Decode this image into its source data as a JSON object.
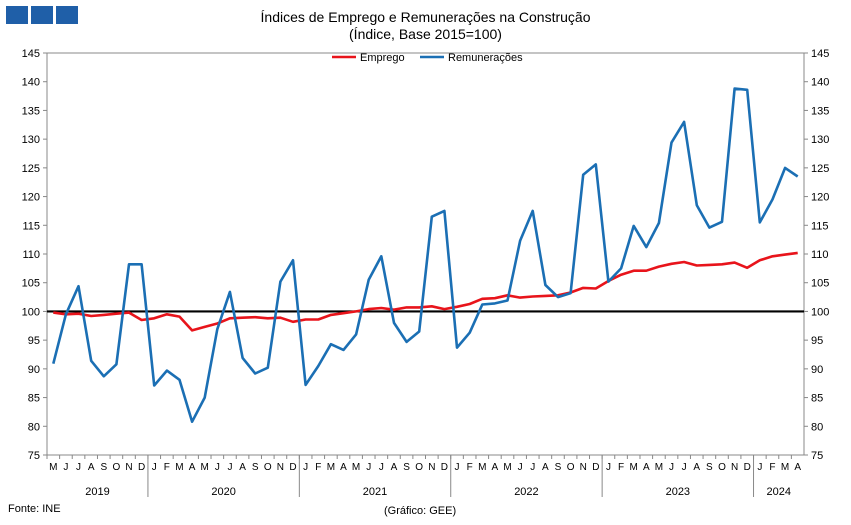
{
  "source_label": "Fonte: INE",
  "credit_label": "(Gráfico: GEE)",
  "chart_data": {
    "type": "line",
    "title": "Índices de Emprego e Remunerações na Construção",
    "subtitle": "(Índice, Base 2015=100)",
    "ylim": [
      75,
      145
    ],
    "yticks": [
      75,
      80,
      85,
      90,
      95,
      100,
      105,
      110,
      115,
      120,
      125,
      130,
      135,
      140,
      145
    ],
    "reference_line": 100,
    "grid": false,
    "legend_position": "top-center",
    "month_labels": [
      "M",
      "J",
      "J",
      "A",
      "S",
      "O",
      "N",
      "D",
      "J",
      "F",
      "M",
      "A",
      "M",
      "J",
      "J",
      "A",
      "S",
      "O",
      "N",
      "D",
      "J",
      "F",
      "M",
      "A",
      "M",
      "J",
      "J",
      "A",
      "S",
      "O",
      "N",
      "D",
      "J",
      "F",
      "M",
      "A",
      "M",
      "J",
      "J",
      "A",
      "S",
      "O",
      "N",
      "D",
      "J",
      "F",
      "M",
      "A",
      "M",
      "J",
      "J",
      "A",
      "S",
      "O",
      "N",
      "D",
      "J",
      "F",
      "M",
      "A"
    ],
    "years": [
      {
        "label": "2019",
        "months": 8
      },
      {
        "label": "2020",
        "months": 12
      },
      {
        "label": "2021",
        "months": 12
      },
      {
        "label": "2022",
        "months": 12
      },
      {
        "label": "2023",
        "months": 12
      },
      {
        "label": "2024",
        "months": 4
      }
    ],
    "series": [
      {
        "name": "Emprego",
        "color": "#e8141b",
        "values": [
          99.8,
          99.5,
          99.6,
          99.2,
          99.4,
          99.6,
          99.8,
          98.5,
          98.8,
          99.5,
          99.1,
          96.7,
          97.3,
          97.9,
          98.8,
          98.9,
          99.0,
          98.8,
          98.9,
          98.2,
          98.6,
          98.6,
          99.4,
          99.7,
          100.0,
          100.4,
          100.6,
          100.3,
          100.7,
          100.7,
          100.9,
          100.4,
          100.8,
          101.3,
          102.2,
          102.3,
          102.8,
          102.4,
          102.6,
          102.7,
          102.8,
          103.3,
          104.1,
          104.0,
          105.3,
          106.4,
          107.1,
          107.1,
          107.8,
          108.3,
          108.6,
          108.0,
          108.1,
          108.2,
          108.5,
          107.6,
          108.9,
          109.6,
          109.9,
          110.2
        ]
      },
      {
        "name": "Remunerações",
        "color": "#1b6fb4",
        "values": [
          90.9,
          99.5,
          104.4,
          91.4,
          88.7,
          90.8,
          108.2,
          108.2,
          87.1,
          89.7,
          88.1,
          80.8,
          85.0,
          96.9,
          103.4,
          91.9,
          89.2,
          90.2,
          105.2,
          108.9,
          87.2,
          90.5,
          94.3,
          93.3,
          96.0,
          105.5,
          109.6,
          98.0,
          94.7,
          96.5,
          116.5,
          117.5,
          93.7,
          96.3,
          101.2,
          101.4,
          101.9,
          112.3,
          117.5,
          104.6,
          102.5,
          103.2,
          123.8,
          125.6,
          105.2,
          107.5,
          114.9,
          111.2,
          115.4,
          129.4,
          133.0,
          118.5,
          114.6,
          115.6,
          138.8,
          138.6,
          115.5,
          119.5,
          125.0,
          123.5
        ]
      }
    ]
  }
}
